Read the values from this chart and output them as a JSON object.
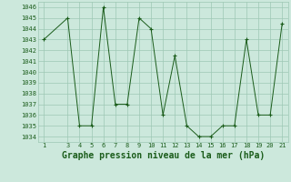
{
  "x": [
    1,
    3,
    4,
    5,
    6,
    7,
    8,
    9,
    10,
    11,
    12,
    13,
    14,
    15,
    16,
    17,
    18,
    19,
    20,
    21
  ],
  "y": [
    1043,
    1045,
    1035,
    1035,
    1046,
    1037,
    1037,
    1045,
    1044,
    1036,
    1041.5,
    1035,
    1034,
    1034,
    1035,
    1035,
    1043,
    1036,
    1036,
    1044.5
  ],
  "title": "Graphe pression niveau de la mer (hPa)",
  "ylim_min": 1033.5,
  "ylim_max": 1046.5,
  "yticks": [
    1034,
    1035,
    1036,
    1037,
    1038,
    1039,
    1040,
    1041,
    1042,
    1043,
    1044,
    1045,
    1046
  ],
  "xticks": [
    1,
    3,
    4,
    5,
    6,
    7,
    8,
    9,
    10,
    11,
    12,
    13,
    14,
    15,
    16,
    17,
    18,
    19,
    20,
    21
  ],
  "line_color": "#1a5c1a",
  "marker_color": "#1a5c1a",
  "bg_color": "#cce8dc",
  "grid_color": "#9ec8b4",
  "title_color": "#1a5c1a",
  "title_fontsize": 7,
  "tick_fontsize": 5
}
